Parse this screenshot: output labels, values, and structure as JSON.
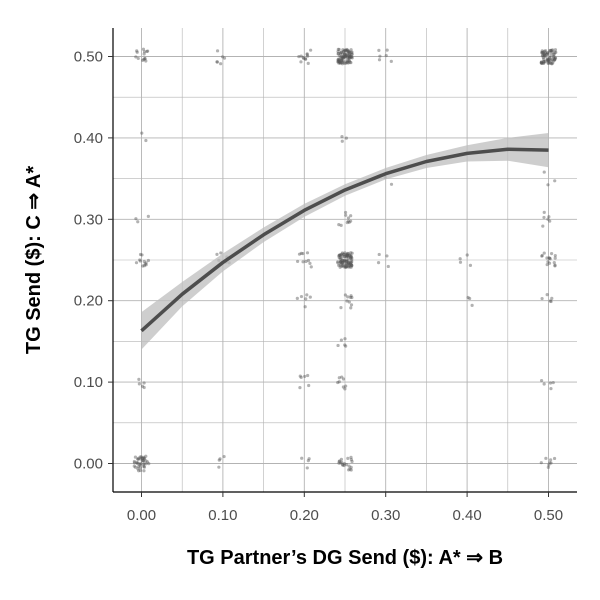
{
  "chart_data": {
    "type": "scatter",
    "title": "",
    "xlabel": "TG Partner’s DG Send ($): A* ⇒ B",
    "ylabel": "TG Send ($): C ⇒ A*",
    "xlim": [
      -0.035,
      0.535
    ],
    "ylim": [
      -0.035,
      0.535
    ],
    "x_ticks": [
      "0.00",
      "0.10",
      "0.20",
      "0.30",
      "0.40",
      "0.50"
    ],
    "y_ticks": [
      "0.00",
      "0.10",
      "0.20",
      "0.30",
      "0.40",
      "0.50"
    ],
    "grid": true,
    "fit": {
      "name": "",
      "x": [
        0.0,
        0.05,
        0.1,
        0.15,
        0.2,
        0.25,
        0.3,
        0.35,
        0.4,
        0.45,
        0.5
      ],
      "y": [
        0.163,
        0.208,
        0.247,
        0.281,
        0.311,
        0.336,
        0.356,
        0.371,
        0.381,
        0.386,
        0.385
      ],
      "ci_lower": [
        0.14,
        0.193,
        0.236,
        0.272,
        0.303,
        0.329,
        0.349,
        0.363,
        0.371,
        0.372,
        0.364
      ],
      "ci_upper": [
        0.186,
        0.223,
        0.258,
        0.29,
        0.319,
        0.343,
        0.363,
        0.379,
        0.391,
        0.4,
        0.406
      ]
    },
    "clusters": [
      {
        "x": 0.0,
        "y": 0.5,
        "n": 14
      },
      {
        "x": 0.0,
        "y": 0.25,
        "n": 12
      },
      {
        "x": 0.0,
        "y": 0.0,
        "n": 40
      },
      {
        "x": 0.0,
        "y": 0.1,
        "n": 5
      },
      {
        "x": 0.0,
        "y": 0.3,
        "n": 3
      },
      {
        "x": 0.0,
        "y": 0.4,
        "n": 2
      },
      {
        "x": 0.1,
        "y": 0.5,
        "n": 6
      },
      {
        "x": 0.1,
        "y": 0.25,
        "n": 6
      },
      {
        "x": 0.1,
        "y": 0.0,
        "n": 4
      },
      {
        "x": 0.2,
        "y": 0.5,
        "n": 12
      },
      {
        "x": 0.2,
        "y": 0.25,
        "n": 10
      },
      {
        "x": 0.2,
        "y": 0.2,
        "n": 6
      },
      {
        "x": 0.2,
        "y": 0.1,
        "n": 6
      },
      {
        "x": 0.2,
        "y": 0.0,
        "n": 4
      },
      {
        "x": 0.25,
        "y": 0.5,
        "n": 90
      },
      {
        "x": 0.25,
        "y": 0.25,
        "n": 90
      },
      {
        "x": 0.25,
        "y": 0.0,
        "n": 20
      },
      {
        "x": 0.25,
        "y": 0.3,
        "n": 10
      },
      {
        "x": 0.25,
        "y": 0.2,
        "n": 10
      },
      {
        "x": 0.25,
        "y": 0.1,
        "n": 8
      },
      {
        "x": 0.25,
        "y": 0.15,
        "n": 5
      },
      {
        "x": 0.25,
        "y": 0.4,
        "n": 3
      },
      {
        "x": 0.3,
        "y": 0.5,
        "n": 6
      },
      {
        "x": 0.3,
        "y": 0.25,
        "n": 4
      },
      {
        "x": 0.3,
        "y": 0.35,
        "n": 3
      },
      {
        "x": 0.4,
        "y": 0.25,
        "n": 4
      },
      {
        "x": 0.4,
        "y": 0.2,
        "n": 3
      },
      {
        "x": 0.5,
        "y": 0.5,
        "n": 70
      },
      {
        "x": 0.5,
        "y": 0.25,
        "n": 16
      },
      {
        "x": 0.5,
        "y": 0.3,
        "n": 6
      },
      {
        "x": 0.5,
        "y": 0.2,
        "n": 5
      },
      {
        "x": 0.5,
        "y": 0.1,
        "n": 5
      },
      {
        "x": 0.5,
        "y": 0.0,
        "n": 8
      },
      {
        "x": 0.5,
        "y": 0.35,
        "n": 3
      }
    ],
    "colors": {
      "points": "#555555",
      "fit_line": "#4d4d4d",
      "ci_band": "#bdbdbd",
      "grid": "#b3b3b3",
      "axis": "#000000",
      "tick_text": "#4d4d4d"
    }
  }
}
